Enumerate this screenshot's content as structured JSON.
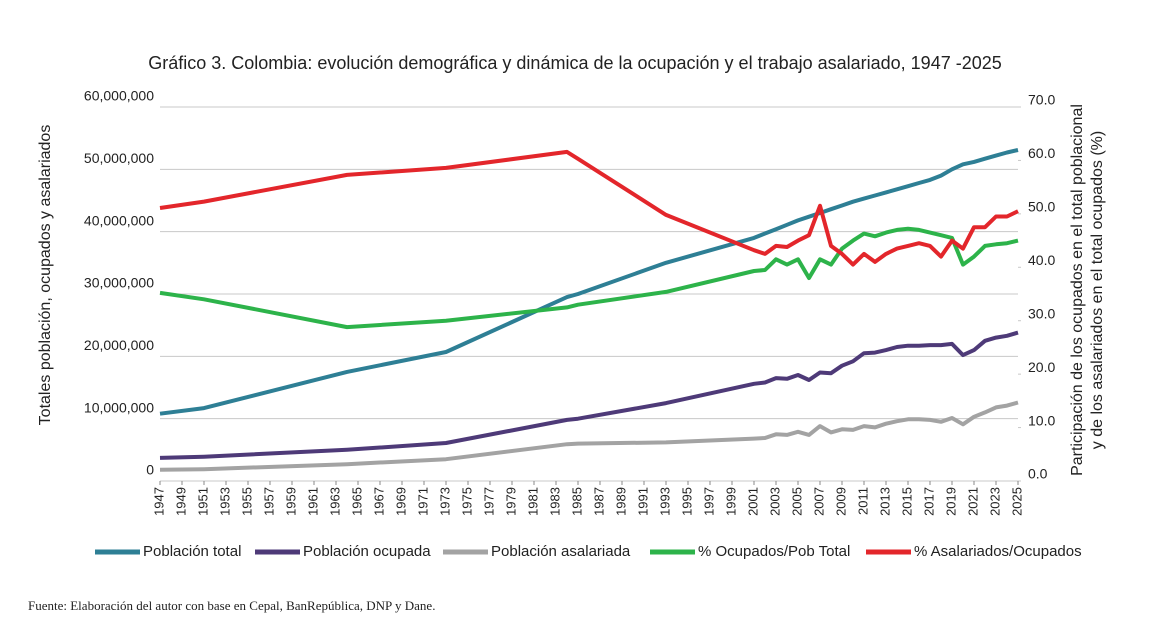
{
  "chart_data": {
    "type": "line",
    "title": "Gráfico 3. Colombia: evolución demográfica y dinámica de la ocupación y el trabajo asalariado, 1947 -2025",
    "ylabel": "Totales población, ocupados y asalariados",
    "y2label": [
      "Participación de los ocupados  en el total poblacional",
      "y de los asalariados en el total ocupados (%)"
    ],
    "note": "Fuente: Elaboración del autor con base en Cepal, BanRepública, DNP y Dane.",
    "x": [
      1947,
      1951,
      1964,
      1973,
      1984,
      1985,
      1993,
      2001,
      2002,
      2003,
      2004,
      2005,
      2006,
      2007,
      2008,
      2009,
      2010,
      2011,
      2012,
      2013,
      2014,
      2015,
      2016,
      2017,
      2018,
      2019,
      2020,
      2021,
      2022,
      2023,
      2024,
      2025
    ],
    "xlim": [
      1947,
      2025
    ],
    "xticks": [
      1947,
      1949,
      1951,
      1953,
      1955,
      1957,
      1959,
      1961,
      1963,
      1965,
      1967,
      1969,
      1971,
      1973,
      1975,
      1977,
      1979,
      1981,
      1983,
      1985,
      1987,
      1989,
      1991,
      1993,
      1995,
      1997,
      1999,
      2001,
      2003,
      2005,
      2007,
      2009,
      2011,
      2013,
      2015,
      2017,
      2019,
      2021,
      2023,
      2025
    ],
    "ylim": [
      0,
      60000000
    ],
    "yticks": [
      0,
      {
        "value": 10000000,
        "label": "10,000,000"
      },
      {
        "value": 20000000,
        "label": "20,000,000"
      },
      {
        "value": 30000000,
        "label": "30,000,000"
      },
      {
        "value": 40000000,
        "label": "40,000,000"
      },
      {
        "value": 50000000,
        "label": "50,000,000"
      },
      {
        "value": 60000000,
        "label": "60,000,000"
      }
    ],
    "y2lim": [
      0,
      70
    ],
    "y2ticks": [
      {
        "value": 0,
        "label": "0.0"
      },
      {
        "value": 10,
        "label": "10.0"
      },
      {
        "value": 20,
        "label": "20.0"
      },
      {
        "value": 30,
        "label": "30.0"
      },
      {
        "value": 40,
        "label": "40.0"
      },
      {
        "value": 50,
        "label": "50.0"
      },
      {
        "value": 60,
        "label": "60.0"
      },
      {
        "value": 70,
        "label": "70.0"
      }
    ],
    "grid": true,
    "legend": "bottom",
    "series": [
      {
        "name": "Población total",
        "color": "#2e7f95",
        "values": [
          10800000,
          11700000,
          17500000,
          20700000,
          29500000,
          30000000,
          35000000,
          39000000,
          39700000,
          40400000,
          41100000,
          41800000,
          42400000,
          43000000,
          43600000,
          44200000,
          44800000,
          45300000,
          45800000,
          46300000,
          46800000,
          47300000,
          47800000,
          48300000,
          49000000,
          50000000,
          50800000,
          51200000,
          51700000,
          52200000,
          52700000,
          53100000
        ]
      },
      {
        "name": "Población ocupada",
        "color": "#4e3a78",
        "values": [
          3700000,
          3900000,
          5000000,
          6100000,
          9800000,
          10000000,
          12500000,
          15600000,
          15800000,
          16500000,
          16400000,
          17000000,
          16200000,
          17400000,
          17300000,
          18500000,
          19200000,
          20500000,
          20600000,
          21000000,
          21500000,
          21700000,
          21700000,
          21800000,
          21800000,
          22000000,
          20200000,
          21000000,
          22500000,
          23000000,
          23300000,
          23800000
        ]
      },
      {
        "name": "Población asalariada",
        "color": "#a3a3a3",
        "values": [
          1800000,
          1900000,
          2700000,
          3500000,
          5900000,
          6000000,
          6200000,
          6800000,
          6900000,
          7500000,
          7400000,
          7900000,
          7400000,
          8800000,
          7800000,
          8300000,
          8200000,
          8800000,
          8600000,
          9200000,
          9600000,
          9900000,
          9900000,
          9800000,
          9500000,
          10100000,
          9100000,
          10300000,
          11000000,
          11800000,
          12100000,
          12600000
        ]
      },
      {
        "name": "% Ocupados/Pob Total",
        "color": "#2db34a",
        "axis": "y2",
        "values": [
          35.2,
          34.0,
          28.8,
          30.0,
          32.5,
          33.0,
          35.4,
          39.3,
          39.5,
          41.5,
          40.5,
          41.5,
          38.0,
          41.5,
          40.5,
          43.5,
          45.0,
          46.3,
          45.8,
          46.5,
          47.0,
          47.2,
          47.0,
          46.5,
          46.0,
          45.5,
          40.5,
          42.0,
          44.0,
          44.3,
          44.5,
          45.0
        ]
      },
      {
        "name": "% Asalariados/Ocupados",
        "color": "#e3262b",
        "axis": "y2",
        "values": [
          51.1,
          52.3,
          57.3,
          58.6,
          61.6,
          60.3,
          49.8,
          43.2,
          42.5,
          44.0,
          43.8,
          45.0,
          46.0,
          51.5,
          44.0,
          42.5,
          40.5,
          42.5,
          41.0,
          42.5,
          43.5,
          44.0,
          44.5,
          44.0,
          42.0,
          45.0,
          43.5,
          47.5,
          47.5,
          49.5,
          49.5,
          50.5
        ]
      }
    ]
  }
}
